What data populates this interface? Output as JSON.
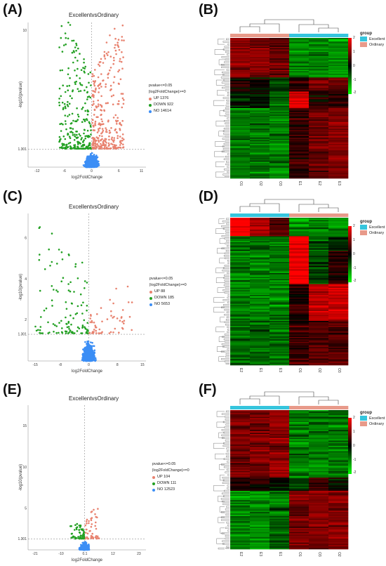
{
  "panels": {
    "A": "(A)",
    "B": "(B)",
    "C": "(C)",
    "D": "(D)",
    "E": "(E)",
    "F": "(F)"
  },
  "colors": {
    "up": "#e8826f",
    "down": "#22a022",
    "no": "#3c8ef5",
    "excellent": "#35c5dd",
    "ordinary": "#e89a8a",
    "heat_low": "#00ff00",
    "heat_mid": "#000000",
    "heat_high": "#ff0000"
  },
  "volcano": {
    "threshold_label": "1.301",
    "x_label": "log2FoldChange",
    "y_label": "-log10(pvalue)",
    "legend_header_1": "pvalue<=0.05",
    "legend_header_2": "|log2FoldChange|>=0"
  },
  "chart_data": [
    {
      "type": "scatter",
      "panel": "A",
      "title": "ExcellentvsOrdinary",
      "xlabel": "log2FoldChange",
      "ylabel": "-log10(pvalue)",
      "xticks": [
        "-12",
        "-6",
        "0",
        "6",
        "11"
      ],
      "yticks": [
        "1.301",
        "10"
      ],
      "legend": [
        "UP 1376",
        "DOWN 922",
        "NO 14614"
      ],
      "counts": {
        "up": 1376,
        "down": 922,
        "no": 14614
      }
    },
    {
      "type": "heatmap",
      "panel": "B",
      "legend_title": "group",
      "groups": [
        "Excellent",
        "Ordinary"
      ],
      "column_labels": [
        "O1",
        "O2",
        "O3",
        "E1",
        "E2",
        "E3"
      ],
      "column_groups": [
        "Ordinary",
        "Ordinary",
        "Ordinary",
        "Excellent",
        "Excellent",
        "Excellent"
      ],
      "colorbar_ticks": [
        "2",
        "1",
        "0",
        "-1",
        "-2"
      ]
    },
    {
      "type": "scatter",
      "panel": "C",
      "title": "ExcellentvsOrdinary",
      "xlabel": "log2FoldChange",
      "ylabel": "-log10(pvalue)",
      "xticks": [
        "-15",
        "-8",
        "0",
        "8",
        "15"
      ],
      "yticks": [
        "1.301",
        "2",
        "4",
        "6"
      ],
      "legend": [
        "UP 88",
        "DOWN 185",
        "NO 5653"
      ],
      "counts": {
        "up": 88,
        "down": 185,
        "no": 5653
      }
    },
    {
      "type": "heatmap",
      "panel": "D",
      "legend_title": "group",
      "groups": [
        "Excellent",
        "Ordinary"
      ],
      "column_labels": [
        "E2",
        "E1",
        "E3",
        "O1",
        "O2",
        "O3"
      ],
      "column_groups": [
        "Excellent",
        "Excellent",
        "Excellent",
        "Ordinary",
        "Ordinary",
        "Ordinary"
      ],
      "colorbar_ticks": [
        "2",
        "1",
        "0",
        "-1",
        "-2"
      ]
    },
    {
      "type": "scatter",
      "panel": "E",
      "title": "ExcellentvsOrdinary",
      "xlabel": "log2FoldChange",
      "ylabel": "-log10(pvalue)",
      "xticks": [
        "-21",
        "-10",
        "0.1",
        "12",
        "23"
      ],
      "yticks": [
        "1.301",
        "5",
        "10",
        "15"
      ],
      "legend": [
        "UP 104",
        "DOWN 111",
        "NO 12523"
      ],
      "counts": {
        "up": 104,
        "down": 111,
        "no": 12523
      }
    },
    {
      "type": "heatmap",
      "panel": "F",
      "legend_title": "group",
      "groups": [
        "Excellent",
        "Ordinary"
      ],
      "column_labels": [
        "E2",
        "E3",
        "E1",
        "O1",
        "O3",
        "O2"
      ],
      "column_groups": [
        "Excellent",
        "Excellent",
        "Excellent",
        "Ordinary",
        "Ordinary",
        "Ordinary"
      ],
      "colorbar_ticks": [
        "2",
        "1",
        "0",
        "-1",
        "-2"
      ]
    }
  ]
}
